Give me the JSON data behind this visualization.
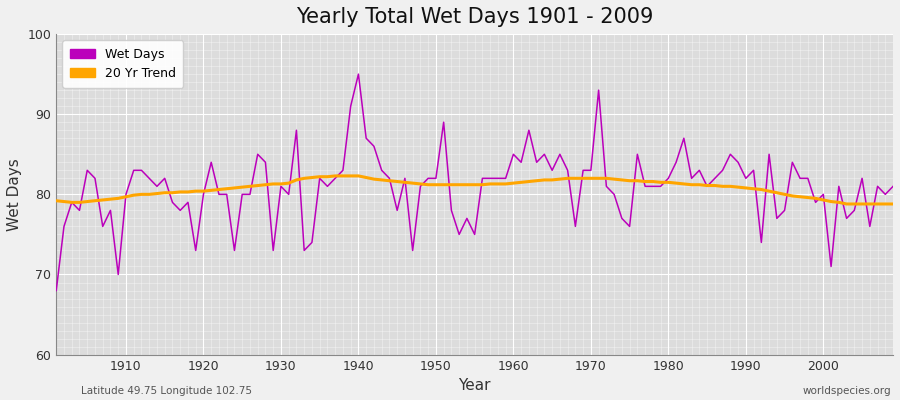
{
  "title": "Yearly Total Wet Days 1901 - 2009",
  "xlabel": "Year",
  "ylabel": "Wet Days",
  "subtitle": "Latitude 49.75 Longitude 102.75",
  "watermark": "worldspecies.org",
  "ylim": [
    60,
    100
  ],
  "xlim": [
    1901,
    2009
  ],
  "yticks": [
    60,
    70,
    80,
    90,
    100
  ],
  "xticks": [
    1910,
    1920,
    1930,
    1940,
    1950,
    1960,
    1970,
    1980,
    1990,
    2000
  ],
  "wet_days_color": "#BB00BB",
  "trend_color": "#FFA500",
  "bg_color": "#F0F0F0",
  "plot_bg_color": "#DCDCDC",
  "legend_wet": "Wet Days",
  "legend_trend": "20 Yr Trend",
  "wet_days": {
    "1901": 68,
    "1902": 76,
    "1903": 79,
    "1904": 78,
    "1905": 83,
    "1906": 82,
    "1907": 76,
    "1908": 78,
    "1909": 70,
    "1910": 80,
    "1911": 83,
    "1912": 83,
    "1913": 82,
    "1914": 81,
    "1915": 82,
    "1916": 79,
    "1917": 78,
    "1918": 79,
    "1919": 73,
    "1920": 80,
    "1921": 84,
    "1922": 80,
    "1923": 80,
    "1924": 73,
    "1925": 80,
    "1926": 80,
    "1927": 85,
    "1928": 84,
    "1929": 73,
    "1930": 81,
    "1931": 80,
    "1932": 88,
    "1933": 73,
    "1934": 74,
    "1935": 82,
    "1936": 81,
    "1937": 82,
    "1938": 83,
    "1939": 91,
    "1940": 95,
    "1941": 87,
    "1942": 86,
    "1943": 83,
    "1944": 82,
    "1945": 78,
    "1946": 82,
    "1947": 73,
    "1948": 81,
    "1949": 82,
    "1950": 82,
    "1951": 89,
    "1952": 78,
    "1953": 75,
    "1954": 77,
    "1955": 75,
    "1956": 82,
    "1957": 82,
    "1958": 82,
    "1959": 82,
    "1960": 85,
    "1961": 84,
    "1962": 88,
    "1963": 84,
    "1964": 85,
    "1965": 83,
    "1966": 85,
    "1967": 83,
    "1968": 76,
    "1969": 83,
    "1970": 83,
    "1971": 93,
    "1972": 81,
    "1973": 80,
    "1974": 77,
    "1975": 76,
    "1976": 85,
    "1977": 81,
    "1978": 81,
    "1979": 81,
    "1980": 82,
    "1981": 84,
    "1982": 87,
    "1983": 82,
    "1984": 83,
    "1985": 81,
    "1986": 82,
    "1987": 83,
    "1988": 85,
    "1989": 84,
    "1990": 82,
    "1991": 83,
    "1992": 74,
    "1993": 85,
    "1994": 77,
    "1995": 78,
    "1996": 84,
    "1997": 82,
    "1998": 82,
    "1999": 79,
    "2000": 80,
    "2001": 71,
    "2002": 81,
    "2003": 77,
    "2004": 78,
    "2005": 82,
    "2006": 76,
    "2007": 81,
    "2008": 80,
    "2009": 81
  },
  "trend_20yr": {
    "1901": 79.2,
    "1902": 79.1,
    "1903": 79.0,
    "1904": 79.0,
    "1905": 79.1,
    "1906": 79.2,
    "1907": 79.3,
    "1908": 79.4,
    "1909": 79.5,
    "1910": 79.7,
    "1911": 79.9,
    "1912": 80.0,
    "1913": 80.0,
    "1914": 80.1,
    "1915": 80.2,
    "1916": 80.2,
    "1917": 80.3,
    "1918": 80.3,
    "1919": 80.4,
    "1920": 80.4,
    "1921": 80.5,
    "1922": 80.6,
    "1923": 80.7,
    "1924": 80.8,
    "1925": 80.9,
    "1926": 81.0,
    "1927": 81.1,
    "1928": 81.2,
    "1929": 81.3,
    "1930": 81.3,
    "1931": 81.4,
    "1932": 81.8,
    "1933": 82.0,
    "1934": 82.1,
    "1935": 82.2,
    "1936": 82.2,
    "1937": 82.3,
    "1938": 82.3,
    "1939": 82.3,
    "1940": 82.3,
    "1941": 82.1,
    "1942": 81.9,
    "1943": 81.8,
    "1944": 81.7,
    "1945": 81.6,
    "1946": 81.5,
    "1947": 81.4,
    "1948": 81.3,
    "1949": 81.2,
    "1950": 81.2,
    "1951": 81.2,
    "1952": 81.2,
    "1953": 81.2,
    "1954": 81.2,
    "1955": 81.2,
    "1956": 81.2,
    "1957": 81.3,
    "1958": 81.3,
    "1959": 81.3,
    "1960": 81.4,
    "1961": 81.5,
    "1962": 81.6,
    "1963": 81.7,
    "1964": 81.8,
    "1965": 81.8,
    "1966": 81.9,
    "1967": 82.0,
    "1968": 82.0,
    "1969": 82.0,
    "1970": 82.0,
    "1971": 82.0,
    "1972": 82.0,
    "1973": 81.9,
    "1974": 81.8,
    "1975": 81.7,
    "1976": 81.7,
    "1977": 81.6,
    "1978": 81.6,
    "1979": 81.5,
    "1980": 81.5,
    "1981": 81.4,
    "1982": 81.3,
    "1983": 81.2,
    "1984": 81.2,
    "1985": 81.1,
    "1986": 81.1,
    "1987": 81.0,
    "1988": 81.0,
    "1989": 80.9,
    "1990": 80.8,
    "1991": 80.7,
    "1992": 80.6,
    "1993": 80.4,
    "1994": 80.2,
    "1995": 80.0,
    "1996": 79.8,
    "1997": 79.7,
    "1998": 79.6,
    "1999": 79.5,
    "2000": 79.3,
    "2001": 79.1,
    "2002": 79.0,
    "2003": 78.8,
    "2004": 78.8,
    "2005": 78.8,
    "2006": 78.8,
    "2007": 78.8,
    "2008": 78.8,
    "2009": 78.8
  }
}
